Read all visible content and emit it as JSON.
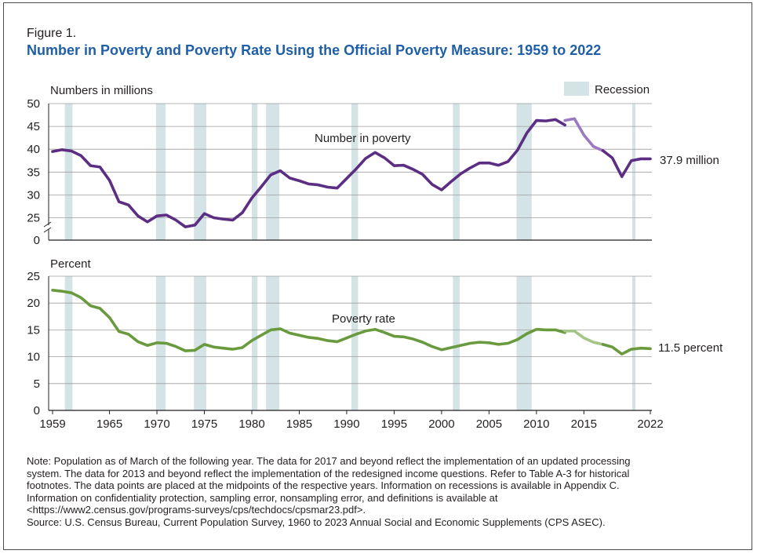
{
  "figure": {
    "label": "Figure 1.",
    "title": "Number in Poverty and Poverty Rate Using the Official Poverty Measure: 1959 to 2022"
  },
  "legend": {
    "recession_label": "Recession",
    "recession_color": "#d3e3e6"
  },
  "notes": [
    "Note: Population as of March of the following year. The data for 2017 and beyond reflect the implementation of an updated processing",
    "system. The data for 2013 and beyond reflect the implementation of the redesigned income questions. Refer to Table A-3 for historical",
    "footnotes. The data points are placed at the midpoints of the respective years. Information on recessions is available in Appendix C.",
    "Information on confidentiality protection, sampling error, nonsampling error, and definitions is available at",
    "<https://www2.census.gov/programs-surveys/cps/techdocs/cpsmar23.pdf>.",
    "Source: U.S. Census Bureau, Current Population Survey, 1960 to 2023 Annual Social and Economic Supplements (CPS ASEC)."
  ],
  "chart_data": [
    {
      "type": "line",
      "panel": "top",
      "ylabel": "Numbers in millions",
      "ylim": [
        20,
        50
      ],
      "yticks": [
        0,
        25,
        30,
        35,
        40,
        45,
        50
      ],
      "axis_break": true,
      "series_label": "Number in poverty",
      "end_label": "37.9 million",
      "color": "#5b2e83",
      "color_light": "#9b79c1",
      "segments": [
        {
          "x": [
            1959,
            1960,
            1961,
            1962,
            1963,
            1964,
            1965,
            1966,
            1967,
            1968,
            1969,
            1970,
            1971,
            1972,
            1973,
            1974,
            1975,
            1976,
            1977,
            1978,
            1979,
            1980,
            1981,
            1982,
            1983,
            1984,
            1985,
            1986,
            1987,
            1988,
            1989,
            1990,
            1991,
            1992,
            1993,
            1994,
            1995,
            1996,
            1997,
            1998,
            1999,
            2000,
            2001,
            2002,
            2003,
            2004,
            2005,
            2006,
            2007,
            2008,
            2009,
            2010,
            2011,
            2012,
            2013
          ],
          "y": [
            39.5,
            39.9,
            39.6,
            38.6,
            36.4,
            36.1,
            33.2,
            28.5,
            27.8,
            25.4,
            24.1,
            25.4,
            25.6,
            24.5,
            23.0,
            23.4,
            25.9,
            25.0,
            24.7,
            24.5,
            26.1,
            29.3,
            31.8,
            34.4,
            35.3,
            33.7,
            33.1,
            32.4,
            32.2,
            31.7,
            31.5,
            33.6,
            35.7,
            38.0,
            39.3,
            38.1,
            36.4,
            36.5,
            35.6,
            34.5,
            32.3,
            31.1,
            32.9,
            34.6,
            35.9,
            37.0,
            37.0,
            36.5,
            37.3,
            39.8,
            43.6,
            46.3,
            46.2,
            46.5,
            45.3
          ],
          "style": "dark"
        },
        {
          "x": [
            2013,
            2014,
            2015,
            2016,
            2017
          ],
          "y": [
            46.3,
            46.7,
            43.1,
            40.6,
            39.7
          ],
          "style": "light"
        },
        {
          "x": [
            2017,
            2018,
            2019,
            2020,
            2021,
            2022
          ],
          "y": [
            39.7,
            38.1,
            34.0,
            37.5,
            37.9,
            37.9
          ],
          "style": "dark"
        }
      ]
    },
    {
      "type": "line",
      "panel": "bottom",
      "ylabel": "Percent",
      "ylim": [
        0,
        25
      ],
      "yticks": [
        0,
        5,
        10,
        15,
        20,
        25
      ],
      "series_label": "Poverty rate",
      "end_label": "11.5 percent",
      "color": "#6a9a3e",
      "color_light": "#a3c586",
      "xlabel": "",
      "xticks": [
        1959,
        1965,
        1970,
        1975,
        1980,
        1985,
        1990,
        1995,
        2000,
        2005,
        2010,
        2015,
        2022
      ],
      "segments": [
        {
          "x": [
            1959,
            1960,
            1961,
            1962,
            1963,
            1964,
            1965,
            1966,
            1967,
            1968,
            1969,
            1970,
            1971,
            1972,
            1973,
            1974,
            1975,
            1976,
            1977,
            1978,
            1979,
            1980,
            1981,
            1982,
            1983,
            1984,
            1985,
            1986,
            1987,
            1988,
            1989,
            1990,
            1991,
            1992,
            1993,
            1994,
            1995,
            1996,
            1997,
            1998,
            1999,
            2000,
            2001,
            2002,
            2003,
            2004,
            2005,
            2006,
            2007,
            2008,
            2009,
            2010,
            2011,
            2012,
            2013
          ],
          "y": [
            22.4,
            22.2,
            21.9,
            21.0,
            19.5,
            19.0,
            17.3,
            14.7,
            14.2,
            12.8,
            12.1,
            12.6,
            12.5,
            11.9,
            11.1,
            11.2,
            12.3,
            11.8,
            11.6,
            11.4,
            11.7,
            13.0,
            14.0,
            15.0,
            15.2,
            14.4,
            14.0,
            13.6,
            13.4,
            13.0,
            12.8,
            13.5,
            14.2,
            14.8,
            15.1,
            14.5,
            13.8,
            13.7,
            13.3,
            12.7,
            11.9,
            11.3,
            11.7,
            12.1,
            12.5,
            12.7,
            12.6,
            12.3,
            12.5,
            13.2,
            14.3,
            15.1,
            15.0,
            15.0,
            14.5
          ],
          "style": "dark"
        },
        {
          "x": [
            2013,
            2014,
            2015,
            2016,
            2017
          ],
          "y": [
            14.8,
            14.8,
            13.5,
            12.7,
            12.3
          ],
          "style": "light"
        },
        {
          "x": [
            2017,
            2018,
            2019,
            2020,
            2021,
            2022
          ],
          "y": [
            12.3,
            11.8,
            10.5,
            11.4,
            11.6,
            11.5
          ],
          "style": "dark"
        }
      ]
    }
  ],
  "recessions": [
    {
      "start": 1960.3,
      "end": 1961.1
    },
    {
      "start": 1969.9,
      "end": 1970.9
    },
    {
      "start": 1973.9,
      "end": 1975.2
    },
    {
      "start": 1980.0,
      "end": 1980.6
    },
    {
      "start": 1981.5,
      "end": 1982.9
    },
    {
      "start": 1990.5,
      "end": 1991.2
    },
    {
      "start": 2001.2,
      "end": 2001.9
    },
    {
      "start": 2007.9,
      "end": 2009.5
    },
    {
      "start": 2020.1,
      "end": 2020.4
    }
  ]
}
